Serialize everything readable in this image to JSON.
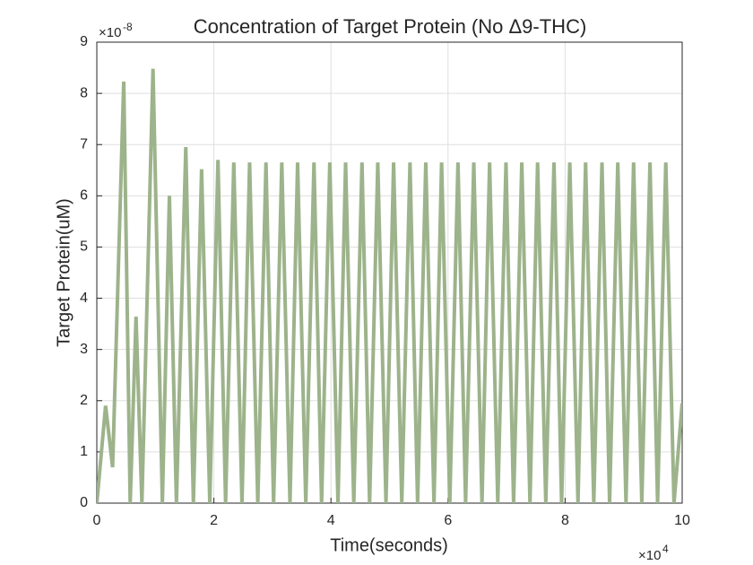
{
  "chart_data": {
    "type": "line",
    "title": "Concentration of Target Protein (No Δ9-THC)",
    "x_label": "Time(seconds)",
    "y_label": "Target Protein(uM)",
    "x_multiplier": {
      "base": "×10",
      "exponent": "4"
    },
    "y_multiplier": {
      "base": "×10",
      "exponent": "-8"
    },
    "x": [
      0,
      0.15,
      0.27,
      0.46,
      0.57,
      0.67,
      0.77,
      0.96,
      1.12,
      1.24,
      1.36,
      1.52,
      1.65,
      1.79,
      1.93,
      2.07,
      2.2,
      2.34,
      2.48,
      2.61,
      2.75,
      2.89,
      3.02,
      3.16,
      3.3,
      3.43,
      3.57,
      3.71,
      3.84,
      3.98,
      4.12,
      4.25,
      4.39,
      4.53,
      4.66,
      4.8,
      4.94,
      5.07,
      5.21,
      5.35,
      5.48,
      5.62,
      5.76,
      5.89,
      6.03,
      6.17,
      6.3,
      6.44,
      6.58,
      6.71,
      6.85,
      6.99,
      7.12,
      7.26,
      7.4,
      7.53,
      7.67,
      7.81,
      7.94,
      8.08,
      8.22,
      8.35,
      8.49,
      8.63,
      8.76,
      8.9,
      9.04,
      9.17,
      9.31,
      9.45,
      9.58,
      9.72,
      9.86,
      10
    ],
    "series": [
      {
        "color": "#9db38b",
        "values": [
          0,
          1.9,
          0.7,
          8.23,
          0,
          3.64,
          0,
          8.48,
          0,
          6.0,
          0,
          6.95,
          0,
          6.52,
          0,
          6.7,
          0,
          6.65,
          0,
          6.65,
          0,
          6.65,
          0,
          6.65,
          0,
          6.65,
          0,
          6.65,
          0,
          6.65,
          0,
          6.65,
          0,
          6.65,
          0,
          6.65,
          0,
          6.65,
          0,
          6.65,
          0,
          6.65,
          0,
          6.65,
          0,
          6.65,
          0,
          6.65,
          0,
          6.65,
          0,
          6.65,
          0,
          6.65,
          0,
          6.65,
          0,
          6.65,
          0,
          6.65,
          0,
          6.65,
          0,
          6.65,
          0,
          6.65,
          0,
          6.65,
          0,
          6.65,
          0,
          6.65,
          0,
          1.95
        ]
      }
    ],
    "xlim": [
      0,
      10
    ],
    "xticks": [
      0,
      2,
      4,
      6,
      8,
      10
    ],
    "ylim": [
      0,
      9
    ],
    "yticks": [
      0,
      1,
      2,
      3,
      4,
      5,
      6,
      7,
      8,
      9
    ],
    "grid": true
  }
}
